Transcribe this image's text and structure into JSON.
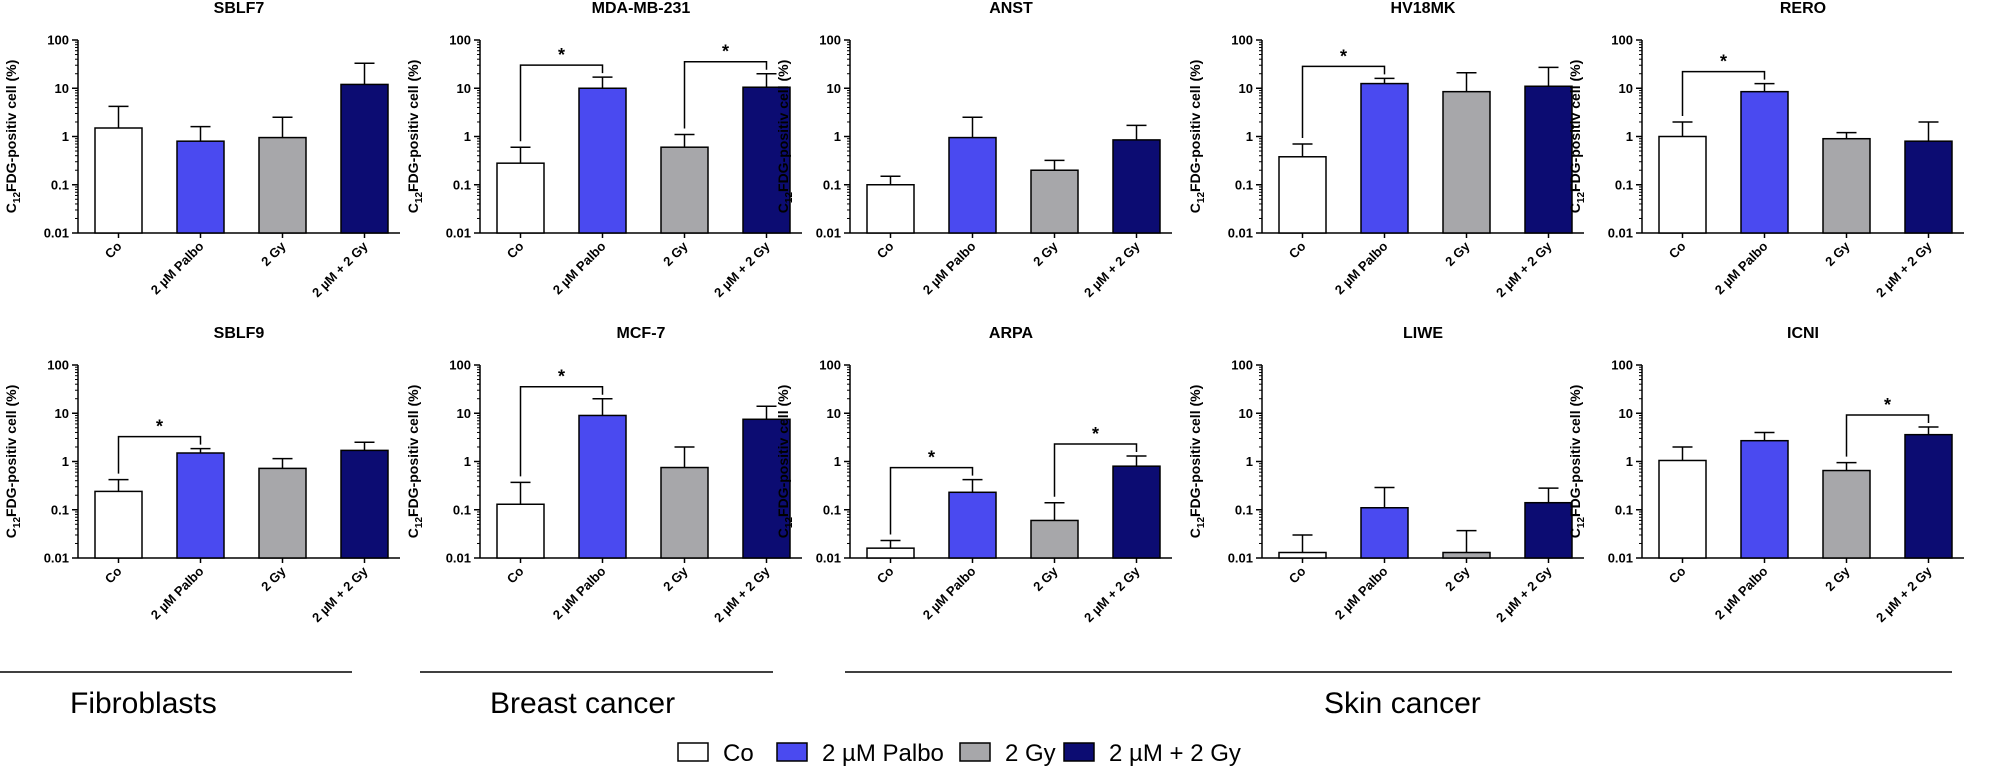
{
  "chart_data": {
    "type": "bar",
    "scale": "log",
    "ylim": [
      0.01,
      100
    ],
    "yticks": [
      "0.01",
      "0.1",
      "1",
      "10",
      "100"
    ],
    "ylabel_parts": [
      "C",
      "12",
      "FDG-positiv cell  (%)"
    ],
    "categories": [
      "Co",
      "2 µM Palbo",
      "2 Gy",
      "2 µM + 2 Gy"
    ],
    "series_colors": [
      "#ffffff",
      "#4a4af0",
      "#a7a7aa",
      "#0c0c72"
    ],
    "significance_marker": "*",
    "panels": [
      {
        "title": "SBLF7",
        "values": [
          1.5,
          0.8,
          0.95,
          12
        ],
        "errors": [
          4.2,
          1.6,
          2.5,
          33
        ],
        "sig": []
      },
      {
        "title": "MDA-MB-231",
        "values": [
          0.28,
          10,
          0.6,
          10.5
        ],
        "errors": [
          0.6,
          17,
          1.1,
          20
        ],
        "sig": [
          [
            0,
            1
          ],
          [
            2,
            3
          ]
        ]
      },
      {
        "title": "ANST",
        "values": [
          0.1,
          0.95,
          0.2,
          0.85
        ],
        "errors": [
          0.15,
          2.5,
          0.32,
          1.7
        ],
        "sig": []
      },
      {
        "title": "HV18MK",
        "values": [
          0.38,
          12.5,
          8.5,
          11
        ],
        "errors": [
          0.7,
          16,
          21,
          27
        ],
        "sig": [
          [
            0,
            1
          ]
        ]
      },
      {
        "title": "RERO",
        "values": [
          1.0,
          8.5,
          0.9,
          0.8
        ],
        "errors": [
          2.0,
          12.5,
          1.2,
          2.0
        ],
        "sig": [
          [
            0,
            1
          ]
        ]
      },
      {
        "title": "SBLF9",
        "values": [
          0.24,
          1.5,
          0.72,
          1.7
        ],
        "errors": [
          0.42,
          1.85,
          1.15,
          2.5
        ],
        "sig": [
          [
            0,
            1
          ]
        ]
      },
      {
        "title": "MCF-7",
        "values": [
          0.13,
          9.0,
          0.75,
          7.5
        ],
        "errors": [
          0.37,
          20,
          2.0,
          14
        ],
        "sig": [
          [
            0,
            1
          ]
        ]
      },
      {
        "title": "ARPA",
        "values": [
          0.016,
          0.23,
          0.06,
          0.8
        ],
        "errors": [
          0.023,
          0.42,
          0.14,
          1.3
        ],
        "sig": [
          [
            0,
            1
          ],
          [
            2,
            3
          ]
        ]
      },
      {
        "title": "LIWE",
        "values": [
          0.013,
          0.11,
          0.013,
          0.14
        ],
        "errors": [
          0.03,
          0.29,
          0.037,
          0.28
        ],
        "sig": []
      },
      {
        "title": "ICNI",
        "values": [
          1.05,
          2.7,
          0.65,
          3.6
        ],
        "errors": [
          2.0,
          4.0,
          0.95,
          5.2
        ],
        "sig": [
          [
            2,
            3
          ]
        ]
      }
    ],
    "groups": [
      {
        "label": "Fibroblasts"
      },
      {
        "label": "Breast cancer"
      },
      {
        "label": "Skin cancer"
      }
    ],
    "legend": [
      "Co",
      "2 µM Palbo",
      "2 Gy",
      "2 µM + 2 Gy"
    ]
  }
}
